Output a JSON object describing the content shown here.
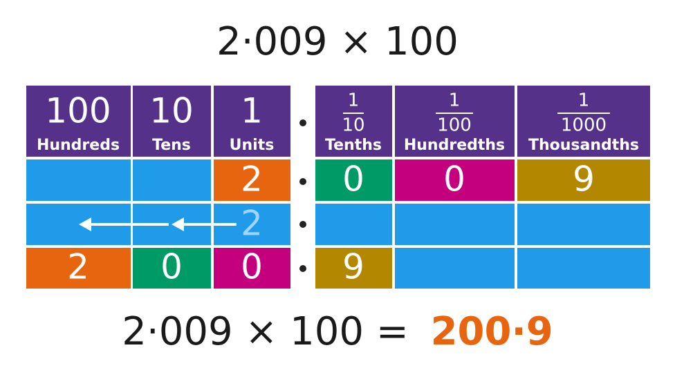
{
  "title": "2·009 × 100",
  "columns": [
    {
      "value": "100",
      "label": "Hundreds"
    },
    {
      "value": "10",
      "label": "Tens"
    },
    {
      "value": "1",
      "label": "Units"
    },
    {
      "numerator": "1",
      "denominator": "10",
      "label": "Tenths"
    },
    {
      "numerator": "1",
      "denominator": "100",
      "label": "Hundredths"
    },
    {
      "numerator": "1",
      "denominator": "1000",
      "label": "Thousandths"
    }
  ],
  "rows": [
    [
      null,
      null,
      "2",
      "0",
      "0",
      "9"
    ],
    [
      null,
      null,
      "2",
      null,
      null,
      null
    ],
    [
      "2",
      "0",
      "0",
      "9",
      null,
      null
    ]
  ],
  "result": {
    "expression": "2·009 × 100 =",
    "answer": "200·9"
  }
}
